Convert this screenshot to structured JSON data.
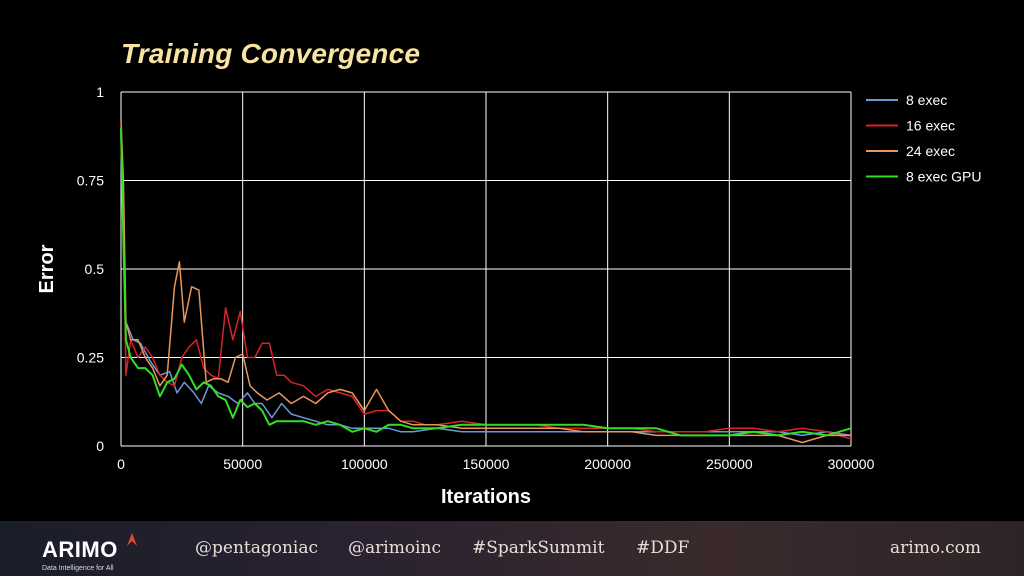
{
  "slide": {
    "title": "Training Convergence"
  },
  "footer": {
    "logo_text": "ARIMO",
    "logo_tagline": "Data Intelligence for All",
    "handles": [
      "@pentagoniac",
      "@arimoinc",
      "#SparkSummit",
      "#DDF"
    ],
    "website": "arimo.com"
  },
  "chart_data": {
    "type": "line",
    "xlabel": "Iterations",
    "ylabel": "Error",
    "xlim": [
      0,
      300000
    ],
    "ylim": [
      0,
      1
    ],
    "x_ticks": [
      "0",
      "50000",
      "100000",
      "150000",
      "200000",
      "250000",
      "300000"
    ],
    "y_ticks": [
      "0",
      "0.25",
      "0.5",
      "0.75",
      "1"
    ],
    "grid": true,
    "legend": "right",
    "series": [
      {
        "name": "8 exec",
        "color": "#6a9ad8",
        "points": [
          [
            0,
            0.88
          ],
          [
            1000,
            0.6
          ],
          [
            2000,
            0.35
          ],
          [
            5000,
            0.3
          ],
          [
            8000,
            0.29
          ],
          [
            12000,
            0.24
          ],
          [
            16000,
            0.2
          ],
          [
            20000,
            0.21
          ],
          [
            23000,
            0.15
          ],
          [
            26000,
            0.18
          ],
          [
            30000,
            0.15
          ],
          [
            33000,
            0.12
          ],
          [
            36000,
            0.17
          ],
          [
            40000,
            0.15
          ],
          [
            44000,
            0.14
          ],
          [
            48000,
            0.12
          ],
          [
            52000,
            0.15
          ],
          [
            55000,
            0.12
          ],
          [
            58000,
            0.12
          ],
          [
            62000,
            0.08
          ],
          [
            66000,
            0.12
          ],
          [
            70000,
            0.09
          ],
          [
            75000,
            0.08
          ],
          [
            80000,
            0.07
          ],
          [
            85000,
            0.06
          ],
          [
            90000,
            0.06
          ],
          [
            95000,
            0.05
          ],
          [
            100000,
            0.05
          ],
          [
            105000,
            0.05
          ],
          [
            110000,
            0.05
          ],
          [
            115000,
            0.04
          ],
          [
            120000,
            0.04
          ],
          [
            130000,
            0.05
          ],
          [
            140000,
            0.04
          ],
          [
            150000,
            0.04
          ],
          [
            160000,
            0.04
          ],
          [
            170000,
            0.04
          ],
          [
            180000,
            0.04
          ],
          [
            190000,
            0.04
          ],
          [
            200000,
            0.04
          ],
          [
            210000,
            0.04
          ],
          [
            220000,
            0.04
          ],
          [
            230000,
            0.04
          ],
          [
            240000,
            0.04
          ],
          [
            250000,
            0.04
          ],
          [
            260000,
            0.04
          ],
          [
            270000,
            0.04
          ],
          [
            280000,
            0.03
          ],
          [
            290000,
            0.04
          ],
          [
            300000,
            0.03
          ]
        ]
      },
      {
        "name": "16 exec",
        "color": "#d8232a",
        "points": [
          [
            0,
            0.88
          ],
          [
            1000,
            0.7
          ],
          [
            2000,
            0.2
          ],
          [
            4000,
            0.3
          ],
          [
            7000,
            0.25
          ],
          [
            10000,
            0.28
          ],
          [
            13000,
            0.25
          ],
          [
            16000,
            0.2
          ],
          [
            19000,
            0.18
          ],
          [
            22000,
            0.17
          ],
          [
            25000,
            0.25
          ],
          [
            28000,
            0.28
          ],
          [
            31000,
            0.3
          ],
          [
            34000,
            0.22
          ],
          [
            37000,
            0.2
          ],
          [
            40000,
            0.19
          ],
          [
            43000,
            0.39
          ],
          [
            46000,
            0.3
          ],
          [
            49000,
            0.38
          ],
          [
            52000,
            0.25
          ],
          [
            55000,
            0.25
          ],
          [
            58000,
            0.29
          ],
          [
            61000,
            0.29
          ],
          [
            64000,
            0.2
          ],
          [
            67000,
            0.2
          ],
          [
            70000,
            0.18
          ],
          [
            75000,
            0.17
          ],
          [
            80000,
            0.14
          ],
          [
            85000,
            0.16
          ],
          [
            90000,
            0.15
          ],
          [
            95000,
            0.14
          ],
          [
            100000,
            0.09
          ],
          [
            105000,
            0.1
          ],
          [
            110000,
            0.1
          ],
          [
            115000,
            0.07
          ],
          [
            120000,
            0.07
          ],
          [
            125000,
            0.06
          ],
          [
            130000,
            0.06
          ],
          [
            140000,
            0.07
          ],
          [
            150000,
            0.06
          ],
          [
            160000,
            0.06
          ],
          [
            170000,
            0.06
          ],
          [
            180000,
            0.05
          ],
          [
            190000,
            0.05
          ],
          [
            200000,
            0.05
          ],
          [
            210000,
            0.05
          ],
          [
            220000,
            0.04
          ],
          [
            230000,
            0.04
          ],
          [
            240000,
            0.04
          ],
          [
            250000,
            0.05
          ],
          [
            260000,
            0.05
          ],
          [
            270000,
            0.04
          ],
          [
            280000,
            0.05
          ],
          [
            290000,
            0.04
          ],
          [
            300000,
            0.02
          ]
        ]
      },
      {
        "name": "24 exec",
        "color": "#e8965a",
        "points": [
          [
            0,
            0.92
          ],
          [
            1000,
            0.75
          ],
          [
            2000,
            0.35
          ],
          [
            4000,
            0.3
          ],
          [
            7000,
            0.3
          ],
          [
            10000,
            0.25
          ],
          [
            13000,
            0.22
          ],
          [
            16000,
            0.17
          ],
          [
            19000,
            0.2
          ],
          [
            22000,
            0.45
          ],
          [
            24000,
            0.52
          ],
          [
            26000,
            0.35
          ],
          [
            29000,
            0.45
          ],
          [
            32000,
            0.44
          ],
          [
            35000,
            0.18
          ],
          [
            38000,
            0.19
          ],
          [
            41000,
            0.19
          ],
          [
            44000,
            0.18
          ],
          [
            47000,
            0.25
          ],
          [
            50000,
            0.26
          ],
          [
            53000,
            0.17
          ],
          [
            56000,
            0.15
          ],
          [
            60000,
            0.13
          ],
          [
            65000,
            0.15
          ],
          [
            70000,
            0.12
          ],
          [
            75000,
            0.14
          ],
          [
            80000,
            0.12
          ],
          [
            85000,
            0.15
          ],
          [
            90000,
            0.16
          ],
          [
            95000,
            0.15
          ],
          [
            100000,
            0.1
          ],
          [
            105000,
            0.16
          ],
          [
            110000,
            0.1
          ],
          [
            115000,
            0.07
          ],
          [
            120000,
            0.06
          ],
          [
            130000,
            0.06
          ],
          [
            140000,
            0.05
          ],
          [
            150000,
            0.05
          ],
          [
            160000,
            0.05
          ],
          [
            170000,
            0.05
          ],
          [
            180000,
            0.05
          ],
          [
            190000,
            0.04
          ],
          [
            200000,
            0.04
          ],
          [
            210000,
            0.04
          ],
          [
            220000,
            0.03
          ],
          [
            230000,
            0.03
          ],
          [
            240000,
            0.03
          ],
          [
            250000,
            0.03
          ],
          [
            260000,
            0.03
          ],
          [
            270000,
            0.03
          ],
          [
            280000,
            0.01
          ],
          [
            290000,
            0.03
          ],
          [
            300000,
            0.03
          ]
        ]
      },
      {
        "name": "8 exec GPU",
        "color": "#33dd22",
        "points": [
          [
            0,
            0.9
          ],
          [
            1000,
            0.58
          ],
          [
            2000,
            0.3
          ],
          [
            4000,
            0.25
          ],
          [
            7000,
            0.22
          ],
          [
            10000,
            0.22
          ],
          [
            13000,
            0.2
          ],
          [
            16000,
            0.14
          ],
          [
            19000,
            0.18
          ],
          [
            22000,
            0.19
          ],
          [
            25000,
            0.23
          ],
          [
            28000,
            0.2
          ],
          [
            31000,
            0.16
          ],
          [
            34000,
            0.18
          ],
          [
            37000,
            0.17
          ],
          [
            40000,
            0.14
          ],
          [
            43000,
            0.13
          ],
          [
            46000,
            0.08
          ],
          [
            49000,
            0.13
          ],
          [
            52000,
            0.11
          ],
          [
            55000,
            0.12
          ],
          [
            58000,
            0.1
          ],
          [
            61000,
            0.06
          ],
          [
            64000,
            0.07
          ],
          [
            67000,
            0.07
          ],
          [
            70000,
            0.07
          ],
          [
            75000,
            0.07
          ],
          [
            80000,
            0.06
          ],
          [
            85000,
            0.07
          ],
          [
            90000,
            0.06
          ],
          [
            95000,
            0.04
          ],
          [
            100000,
            0.05
          ],
          [
            105000,
            0.04
          ],
          [
            110000,
            0.06
          ],
          [
            115000,
            0.06
          ],
          [
            120000,
            0.05
          ],
          [
            130000,
            0.05
          ],
          [
            140000,
            0.06
          ],
          [
            150000,
            0.06
          ],
          [
            160000,
            0.06
          ],
          [
            170000,
            0.06
          ],
          [
            180000,
            0.06
          ],
          [
            190000,
            0.06
          ],
          [
            200000,
            0.05
          ],
          [
            210000,
            0.05
          ],
          [
            220000,
            0.05
          ],
          [
            230000,
            0.03
          ],
          [
            240000,
            0.03
          ],
          [
            250000,
            0.03
          ],
          [
            260000,
            0.04
          ],
          [
            270000,
            0.03
          ],
          [
            280000,
            0.04
          ],
          [
            290000,
            0.03
          ],
          [
            300000,
            0.05
          ]
        ]
      }
    ]
  }
}
